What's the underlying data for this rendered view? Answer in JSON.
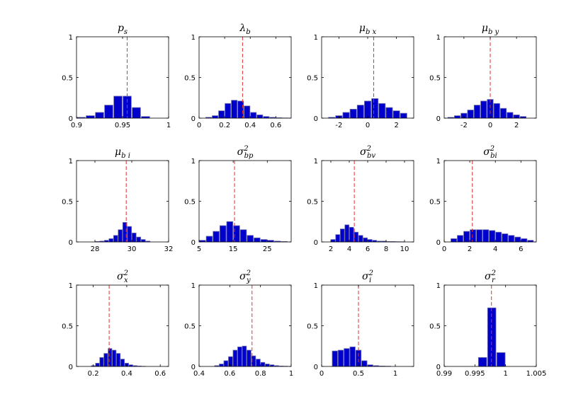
{
  "figure": {
    "bar_color": "#0000cc",
    "bar_edge": "#6f6fa8",
    "marker_color": "#e03030"
  },
  "chart_data": [
    {
      "type": "bar",
      "title": "p_s",
      "title_base": "p",
      "title_sub": "s",
      "xlim": [
        0.9,
        1.0
      ],
      "ylim": [
        0,
        1
      ],
      "xticks": [
        0.9,
        0.95,
        1
      ],
      "xtick_labels": [
        "0.9",
        "0.95",
        "1"
      ],
      "yticks": [
        0,
        0.5,
        1
      ],
      "ytick_labels": [
        "0",
        "0.5",
        "1"
      ],
      "x": [
        0.905,
        0.915,
        0.925,
        0.935,
        0.945,
        0.955,
        0.965,
        0.975
      ],
      "values": [
        0.01,
        0.03,
        0.07,
        0.16,
        0.27,
        0.27,
        0.13,
        0.02
      ],
      "marker": 0.955
    },
    {
      "type": "bar",
      "title": "λ_b",
      "title_base": "λ",
      "title_sub": "b",
      "xlim": [
        0,
        0.72
      ],
      "ylim": [
        0,
        1
      ],
      "xticks": [
        0,
        0.2,
        0.4,
        0.6
      ],
      "xtick_labels": [
        "0",
        "0.2",
        "0.4",
        "0.6"
      ],
      "yticks": [
        0,
        0.5,
        1
      ],
      "ytick_labels": [
        "0",
        "0.5",
        "1"
      ],
      "x": [
        0.075,
        0.125,
        0.175,
        0.225,
        0.275,
        0.325,
        0.375,
        0.425,
        0.475,
        0.525,
        0.575,
        0.625,
        0.675
      ],
      "values": [
        0.01,
        0.03,
        0.09,
        0.18,
        0.22,
        0.21,
        0.15,
        0.07,
        0.04,
        0.02,
        0.01,
        0.005,
        0.002
      ],
      "marker": 0.34
    },
    {
      "type": "bar",
      "title": "μ_bx",
      "title_base": "μ",
      "title_sub": "b x",
      "xlim": [
        -3.2,
        3.2
      ],
      "ylim": [
        0,
        1
      ],
      "xticks": [
        -2,
        0,
        2
      ],
      "xtick_labels": [
        "-2",
        "0",
        "2"
      ],
      "yticks": [
        0,
        0.5,
        1
      ],
      "ytick_labels": [
        "0",
        "0.5",
        "1"
      ],
      "x": [
        -2.5,
        -2.0,
        -1.5,
        -1.0,
        -0.5,
        0.0,
        0.5,
        1.0,
        1.5,
        2.0,
        2.5
      ],
      "values": [
        0.01,
        0.03,
        0.07,
        0.11,
        0.16,
        0.21,
        0.24,
        0.18,
        0.13,
        0.09,
        0.06
      ],
      "marker": 0.42
    },
    {
      "type": "bar",
      "title": "μ_by",
      "title_base": "μ",
      "title_sub": "b y",
      "xlim": [
        -3.5,
        3.5
      ],
      "ylim": [
        0,
        1
      ],
      "xticks": [
        -2,
        0,
        2
      ],
      "xtick_labels": [
        "-2",
        "0",
        "2"
      ],
      "yticks": [
        0,
        0.5,
        1
      ],
      "ytick_labels": [
        "0",
        "0.5",
        "1"
      ],
      "x": [
        -3.0,
        -2.5,
        -2.0,
        -1.5,
        -1.0,
        -0.5,
        0.0,
        0.5,
        1.0,
        1.5,
        2.0,
        2.5
      ],
      "values": [
        0.01,
        0.03,
        0.06,
        0.1,
        0.16,
        0.21,
        0.23,
        0.18,
        0.12,
        0.07,
        0.04,
        0.02
      ],
      "marker": 0.0
    },
    {
      "type": "bar",
      "title": "μ_bi",
      "title_base": "μ",
      "title_sub": "b i",
      "xlim": [
        27,
        32
      ],
      "ylim": [
        0,
        1
      ],
      "xticks": [
        28,
        30,
        32
      ],
      "xtick_labels": [
        "28",
        "30",
        "32"
      ],
      "yticks": [
        0,
        0.5,
        1
      ],
      "ytick_labels": [
        "0",
        "0.5",
        "1"
      ],
      "x": [
        28.125,
        28.375,
        28.625,
        28.875,
        29.125,
        29.375,
        29.625,
        29.875,
        30.125,
        30.375,
        30.625,
        30.875
      ],
      "values": [
        0.005,
        0.01,
        0.02,
        0.04,
        0.08,
        0.15,
        0.24,
        0.19,
        0.11,
        0.06,
        0.03,
        0.01
      ],
      "marker": 29.7
    },
    {
      "type": "bar",
      "title": "σ²_bp",
      "title_base": "σ",
      "title_sup": "2",
      "title_sub": "bp",
      "xlim": [
        5,
        32
      ],
      "ylim": [
        0,
        1
      ],
      "xticks": [
        5,
        15,
        25
      ],
      "xtick_labels": [
        "5",
        "15",
        "25"
      ],
      "yticks": [
        0,
        0.5,
        1
      ],
      "ytick_labels": [
        "0",
        "0.5",
        "1"
      ],
      "x": [
        6,
        8,
        10,
        12,
        14,
        16,
        18,
        20,
        22,
        24,
        26,
        28,
        30
      ],
      "values": [
        0.02,
        0.07,
        0.13,
        0.2,
        0.25,
        0.2,
        0.15,
        0.08,
        0.05,
        0.03,
        0.02,
        0.01,
        0.005
      ],
      "marker": 15.4
    },
    {
      "type": "bar",
      "title": "σ²_bv",
      "title_base": "σ",
      "title_sup": "2",
      "title_sub": "bv",
      "xlim": [
        1,
        11
      ],
      "ylim": [
        0,
        1
      ],
      "xticks": [
        2,
        4,
        6,
        8,
        10
      ],
      "xtick_labels": [
        "2",
        "4",
        "6",
        "8",
        "10"
      ],
      "yticks": [
        0,
        0.5,
        1
      ],
      "ytick_labels": [
        "0",
        "0.5",
        "1"
      ],
      "x": [
        2.25,
        2.75,
        3.25,
        3.75,
        4.25,
        4.75,
        5.25,
        5.75,
        6.25,
        6.75,
        7.25,
        7.75,
        8.25,
        8.75,
        9.25,
        9.75
      ],
      "values": [
        0.03,
        0.09,
        0.16,
        0.21,
        0.18,
        0.12,
        0.08,
        0.05,
        0.03,
        0.02,
        0.01,
        0.01,
        0.005,
        0.005,
        0.003,
        0.002
      ],
      "marker": 4.55
    },
    {
      "type": "bar",
      "title": "σ²_bi",
      "title_base": "σ",
      "title_sup": "2",
      "title_sub": "bi",
      "xlim": [
        0,
        7.2
      ],
      "ylim": [
        0,
        1
      ],
      "xticks": [
        0,
        2,
        4,
        6
      ],
      "xtick_labels": [
        "0",
        "2",
        "4",
        "6"
      ],
      "yticks": [
        0,
        0.5,
        1
      ],
      "ytick_labels": [
        "0",
        "0.5",
        "1"
      ],
      "x": [
        0.75,
        1.25,
        1.75,
        2.25,
        2.75,
        3.25,
        3.75,
        4.25,
        4.75,
        5.25,
        5.75,
        6.25,
        6.75
      ],
      "values": [
        0.04,
        0.08,
        0.13,
        0.15,
        0.15,
        0.15,
        0.14,
        0.12,
        0.1,
        0.08,
        0.06,
        0.04,
        0.02
      ],
      "marker": 2.2
    },
    {
      "type": "bar",
      "title": "σ²_x",
      "title_base": "σ",
      "title_sup": "2",
      "title_sub": "x",
      "xlim": [
        0.1,
        0.65
      ],
      "ylim": [
        0,
        1
      ],
      "xticks": [
        0.2,
        0.4,
        0.6
      ],
      "xtick_labels": [
        "0.2",
        "0.4",
        "0.6"
      ],
      "yticks": [
        0,
        0.5,
        1
      ],
      "ytick_labels": [
        "0",
        "0.5",
        "1"
      ],
      "x": [
        0.2,
        0.225,
        0.25,
        0.275,
        0.3,
        0.325,
        0.35,
        0.375,
        0.4,
        0.425,
        0.45,
        0.475,
        0.5
      ],
      "values": [
        0.01,
        0.04,
        0.11,
        0.16,
        0.22,
        0.2,
        0.16,
        0.09,
        0.04,
        0.02,
        0.01,
        0.005,
        0.002
      ],
      "marker": 0.295
    },
    {
      "type": "bar",
      "title": "σ²_y",
      "title_base": "σ",
      "title_sup": "2",
      "title_sub": "y",
      "xlim": [
        0.4,
        1.0
      ],
      "ylim": [
        0,
        1
      ],
      "xticks": [
        0.4,
        0.6,
        0.8,
        1
      ],
      "xtick_labels": [
        "0.4",
        "0.6",
        "0.8",
        "1"
      ],
      "yticks": [
        0,
        0.5,
        1
      ],
      "ytick_labels": [
        "0",
        "0.5",
        "1"
      ],
      "x": [
        0.515,
        0.545,
        0.575,
        0.605,
        0.635,
        0.665,
        0.695,
        0.725,
        0.755,
        0.785,
        0.815,
        0.845,
        0.875,
        0.905,
        0.935,
        0.965
      ],
      "values": [
        0.01,
        0.03,
        0.07,
        0.12,
        0.2,
        0.24,
        0.25,
        0.2,
        0.13,
        0.09,
        0.05,
        0.03,
        0.02,
        0.01,
        0.005,
        0.003
      ],
      "marker": 0.745
    },
    {
      "type": "bar",
      "title": "σ²_i",
      "title_base": "σ",
      "title_sup": "2",
      "title_sub": "i",
      "xlim": [
        0,
        1.25
      ],
      "ylim": [
        0,
        1
      ],
      "xticks": [
        0,
        0.5,
        1
      ],
      "xtick_labels": [
        "0",
        "0.5",
        "1"
      ],
      "yticks": [
        0,
        0.5,
        1
      ],
      "ytick_labels": [
        "0",
        "0.5",
        "1"
      ],
      "x": [
        0.18,
        0.26,
        0.34,
        0.42,
        0.5,
        0.58,
        0.66,
        0.74,
        0.82,
        0.9
      ],
      "values": [
        0.19,
        0.2,
        0.22,
        0.24,
        0.2,
        0.07,
        0.02,
        0.01,
        0.005,
        0.003
      ],
      "marker": 0.5
    },
    {
      "type": "bar",
      "title": "σ²_r",
      "title_base": "σ",
      "title_sup": "2",
      "title_sub": "r",
      "xlim": [
        0.99,
        1.005
      ],
      "ylim": [
        0,
        1
      ],
      "xticks": [
        0.99,
        0.995,
        1,
        1.005
      ],
      "xtick_labels": [
        "0.99",
        "0.995",
        "1",
        "1.005"
      ],
      "yticks": [
        0,
        0.5,
        1
      ],
      "ytick_labels": [
        "0",
        "0.5",
        "1"
      ],
      "x": [
        0.99625,
        0.99775,
        0.99925
      ],
      "values": [
        0.11,
        0.72,
        0.17
      ],
      "marker": 0.9977
    }
  ]
}
